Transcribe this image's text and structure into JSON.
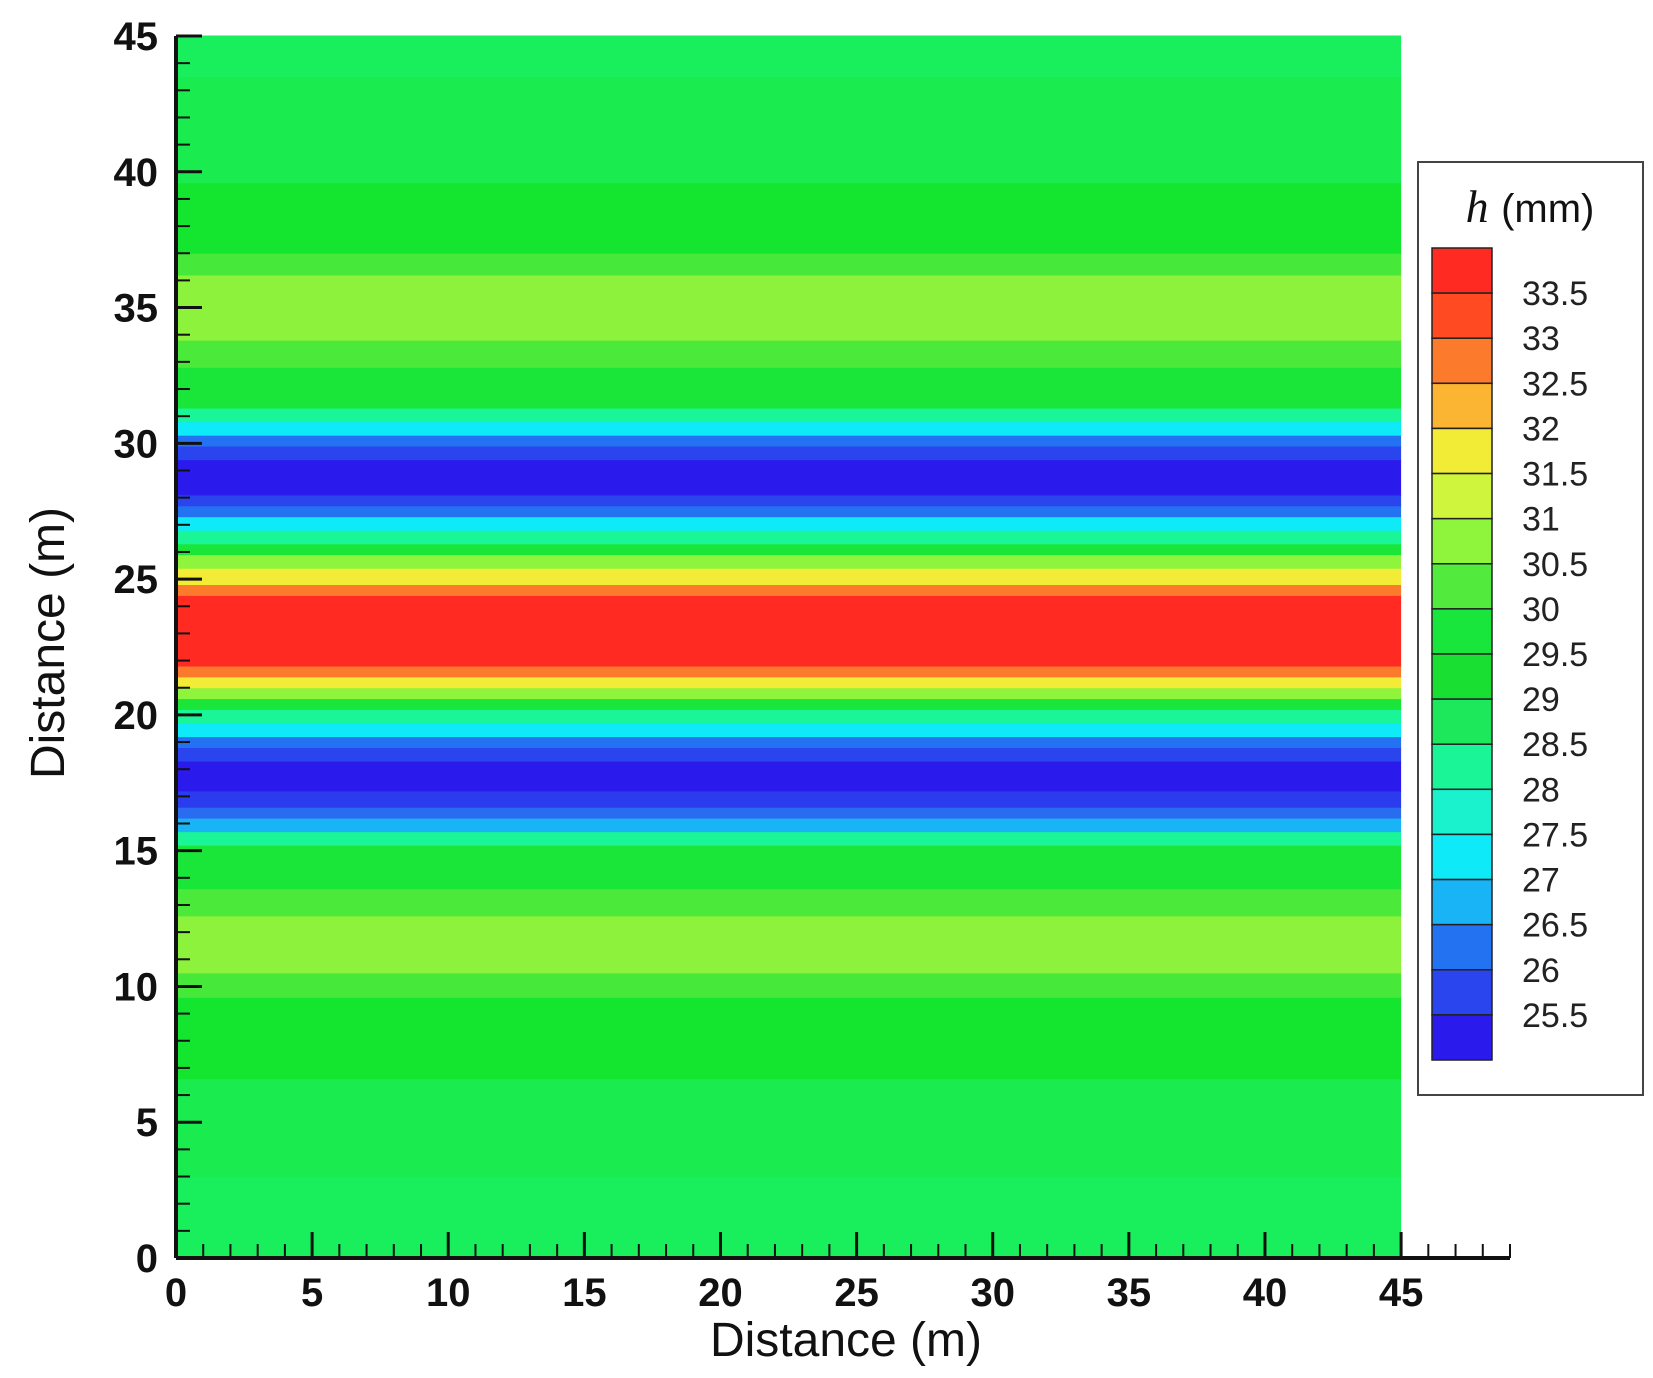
{
  "chart_data": {
    "type": "heatmap",
    "title": "",
    "xlabel": "Distance (m)",
    "ylabel": "Distance (m)",
    "xlim": [
      0,
      49
    ],
    "ylim": [
      0,
      45
    ],
    "field_x_extent": [
      0,
      45
    ],
    "x_ticks": [
      0,
      5,
      10,
      15,
      20,
      25,
      30,
      35,
      40,
      45
    ],
    "y_ticks": [
      0,
      5,
      10,
      15,
      20,
      25,
      30,
      35,
      40,
      45
    ],
    "legend": {
      "var": "h",
      "unit": "(mm)",
      "placement": "right",
      "levels": [
        {
          "label": "33.5",
          "color": "#ff2a22"
        },
        {
          "label": "33",
          "color": "#ff4a22"
        },
        {
          "label": "32.5",
          "color": "#fb7a2c"
        },
        {
          "label": "32",
          "color": "#fbb533"
        },
        {
          "label": "31.5",
          "color": "#f2ec37"
        },
        {
          "label": "31",
          "color": "#cff53c"
        },
        {
          "label": "30.5",
          "color": "#8ff43c"
        },
        {
          "label": "30",
          "color": "#52ea3c"
        },
        {
          "label": "29.5",
          "color": "#18e63c"
        },
        {
          "label": "29",
          "color": "#18df32"
        },
        {
          "label": "28.5",
          "color": "#1de85b"
        },
        {
          "label": "28",
          "color": "#19f597"
        },
        {
          "label": "27.5",
          "color": "#19f2cd"
        },
        {
          "label": "27",
          "color": "#0eeaf8"
        },
        {
          "label": "26.5",
          "color": "#19b4f5"
        },
        {
          "label": "26",
          "color": "#2372f2"
        },
        {
          "label": "25.5",
          "color": "#2a44ee"
        },
        {
          "label": "",
          "color": "#2a1aec"
        }
      ]
    },
    "bands": [
      {
        "y0": 0,
        "y1": 3,
        "color": "#19ee5c"
      },
      {
        "y0": 3,
        "y1": 6.6,
        "color": "#1aec50"
      },
      {
        "y0": 6.6,
        "y1": 9.6,
        "color": "#14e630"
      },
      {
        "y0": 9.6,
        "y1": 10.5,
        "color": "#46e93a"
      },
      {
        "y0": 10.5,
        "y1": 12.6,
        "color": "#8df23c"
      },
      {
        "y0": 12.6,
        "y1": 13.6,
        "color": "#4ae93a"
      },
      {
        "y0": 13.6,
        "y1": 15.2,
        "color": "#1ae63a"
      },
      {
        "y0": 15.2,
        "y1": 15.7,
        "color": "#19f597"
      },
      {
        "y0": 15.7,
        "y1": 16.2,
        "color": "#19b4f5"
      },
      {
        "y0": 16.2,
        "y1": 16.6,
        "color": "#2a6cf0"
      },
      {
        "y0": 16.6,
        "y1": 17.2,
        "color": "#2a3cee"
      },
      {
        "y0": 17.2,
        "y1": 18.3,
        "color": "#2a1aec"
      },
      {
        "y0": 18.3,
        "y1": 18.8,
        "color": "#2a44ee"
      },
      {
        "y0": 18.8,
        "y1": 19.2,
        "color": "#2372f2"
      },
      {
        "y0": 19.2,
        "y1": 19.7,
        "color": "#0eeaf8"
      },
      {
        "y0": 19.7,
        "y1": 20.2,
        "color": "#19f597"
      },
      {
        "y0": 20.2,
        "y1": 20.6,
        "color": "#1ae63a"
      },
      {
        "y0": 20.6,
        "y1": 21.0,
        "color": "#8ff43c"
      },
      {
        "y0": 21.0,
        "y1": 21.4,
        "color": "#f2ec37"
      },
      {
        "y0": 21.4,
        "y1": 21.8,
        "color": "#fb7a2c"
      },
      {
        "y0": 21.8,
        "y1": 24.4,
        "color": "#ff2a22"
      },
      {
        "y0": 24.4,
        "y1": 24.8,
        "color": "#fb7a2c"
      },
      {
        "y0": 24.8,
        "y1": 25.4,
        "color": "#f2ec37"
      },
      {
        "y0": 25.4,
        "y1": 25.9,
        "color": "#8ff43c"
      },
      {
        "y0": 25.9,
        "y1": 26.3,
        "color": "#1ae63a"
      },
      {
        "y0": 26.3,
        "y1": 26.8,
        "color": "#19f597"
      },
      {
        "y0": 26.8,
        "y1": 27.3,
        "color": "#0eeaf8"
      },
      {
        "y0": 27.3,
        "y1": 27.7,
        "color": "#2372f2"
      },
      {
        "y0": 27.7,
        "y1": 28.1,
        "color": "#2a44ee"
      },
      {
        "y0": 28.1,
        "y1": 29.4,
        "color": "#2a1aec"
      },
      {
        "y0": 29.4,
        "y1": 29.9,
        "color": "#2a44ee"
      },
      {
        "y0": 29.9,
        "y1": 30.3,
        "color": "#2372f2"
      },
      {
        "y0": 30.3,
        "y1": 30.8,
        "color": "#0eeaf8"
      },
      {
        "y0": 30.8,
        "y1": 31.3,
        "color": "#19f597"
      },
      {
        "y0": 31.3,
        "y1": 32.8,
        "color": "#1ae63a"
      },
      {
        "y0": 32.8,
        "y1": 33.8,
        "color": "#4ae93a"
      },
      {
        "y0": 33.8,
        "y1": 36.2,
        "color": "#8df23c"
      },
      {
        "y0": 36.2,
        "y1": 37.0,
        "color": "#46e93a"
      },
      {
        "y0": 37.0,
        "y1": 39.6,
        "color": "#14e630"
      },
      {
        "y0": 39.6,
        "y1": 43.5,
        "color": "#1aec50"
      },
      {
        "y0": 43.5,
        "y1": 45,
        "color": "#19ee5c"
      }
    ]
  }
}
